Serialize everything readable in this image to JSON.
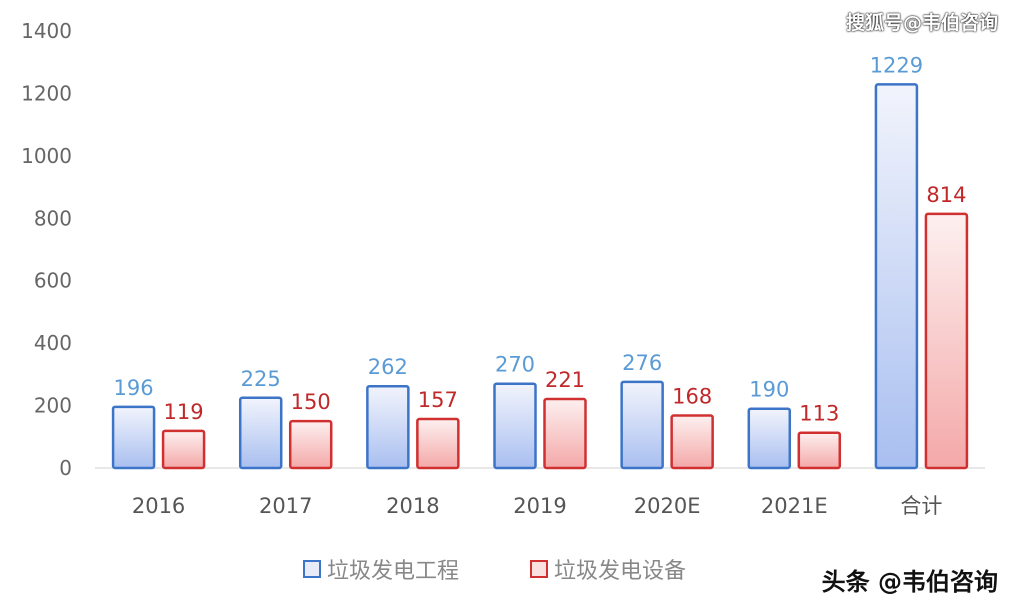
{
  "chart_data": {
    "type": "bar",
    "categories": [
      "2016",
      "2017",
      "2018",
      "2019",
      "2020E",
      "2021E",
      "合计"
    ],
    "series": [
      {
        "name": "垃圾发电工程",
        "values": [
          196,
          225,
          262,
          270,
          276,
          190,
          1229
        ],
        "color": "#3c74c8",
        "label_color": "#5b9bd5"
      },
      {
        "name": "垃圾发电设备",
        "values": [
          119,
          150,
          157,
          221,
          168,
          113,
          814
        ],
        "color": "#d03030",
        "label_color": "#c0282a"
      }
    ],
    "ylim": [
      0,
      1400
    ],
    "yticks": [
      0,
      200,
      400,
      600,
      800,
      1000,
      1200,
      1400
    ],
    "grid": false,
    "legend": "bottom"
  },
  "watermarks": {
    "top": "搜狐号@韦伯咨询",
    "bottom": "头条 @韦伯咨询"
  }
}
